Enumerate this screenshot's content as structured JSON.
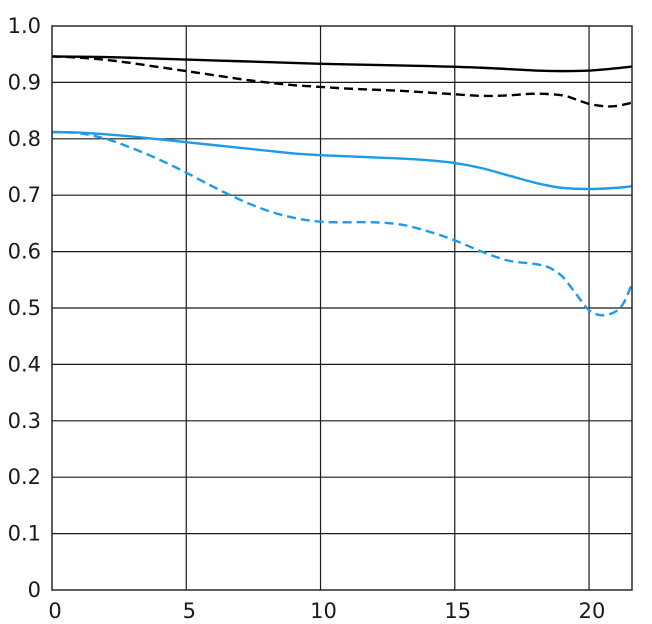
{
  "chart_data": {
    "type": "line",
    "title": "",
    "xlabel": "",
    "ylabel": "",
    "xlim": [
      0,
      21.6
    ],
    "ylim": [
      0,
      1.0
    ],
    "grid": true,
    "x_ticks": [
      0,
      5,
      10,
      15,
      20
    ],
    "x_tick_labels": [
      "0",
      "5",
      "10",
      "15",
      "20"
    ],
    "y_ticks": [
      0,
      0.1,
      0.2,
      0.3,
      0.4,
      0.5,
      0.6,
      0.7,
      0.8,
      0.9,
      1.0
    ],
    "y_tick_labels": [
      "0",
      "0.1",
      "0.2",
      "0.3",
      "0.4",
      "0.5",
      "0.6",
      "0.7",
      "0.8",
      "0.9",
      "1.0"
    ],
    "series": [
      {
        "color": "#000000",
        "dash": "solid",
        "x": [
          0,
          2,
          4,
          6,
          8,
          10,
          12,
          14,
          16,
          18,
          19,
          20,
          21,
          21.6
        ],
        "y": [
          0.946,
          0.945,
          0.942,
          0.939,
          0.936,
          0.933,
          0.931,
          0.929,
          0.926,
          0.921,
          0.92,
          0.921,
          0.925,
          0.928
        ]
      },
      {
        "color": "#000000",
        "dash": "dashed",
        "x": [
          0,
          1,
          2,
          3,
          4,
          5,
          6,
          7,
          8,
          9,
          10,
          11,
          12,
          13,
          14,
          15,
          16,
          17,
          18,
          19,
          19.5,
          20,
          20.5,
          21,
          21.6
        ],
        "y": [
          0.946,
          0.944,
          0.94,
          0.934,
          0.927,
          0.92,
          0.913,
          0.906,
          0.9,
          0.895,
          0.892,
          0.889,
          0.887,
          0.885,
          0.882,
          0.879,
          0.876,
          0.877,
          0.88,
          0.877,
          0.87,
          0.862,
          0.858,
          0.858,
          0.864
        ]
      },
      {
        "color": "#1e9be8",
        "dash": "solid",
        "x": [
          0,
          1,
          2,
          3,
          4,
          5,
          6,
          7,
          8,
          9,
          10,
          11,
          12,
          13,
          14,
          15,
          16,
          17,
          18,
          19,
          20,
          21,
          21.6
        ],
        "y": [
          0.812,
          0.811,
          0.808,
          0.804,
          0.799,
          0.794,
          0.789,
          0.784,
          0.779,
          0.774,
          0.771,
          0.769,
          0.767,
          0.765,
          0.762,
          0.757,
          0.748,
          0.735,
          0.722,
          0.713,
          0.711,
          0.713,
          0.716
        ]
      },
      {
        "color": "#1e9be8",
        "dash": "dashed",
        "x": [
          0,
          1,
          2,
          3,
          4,
          5,
          6,
          7,
          8,
          9,
          10,
          11,
          12,
          13,
          14,
          15,
          16,
          17,
          18,
          18.5,
          19,
          19.5,
          20,
          20.5,
          21,
          21.3,
          21.6
        ],
        "y": [
          0.812,
          0.81,
          0.8,
          0.783,
          0.763,
          0.74,
          0.715,
          0.692,
          0.673,
          0.66,
          0.653,
          0.652,
          0.652,
          0.648,
          0.636,
          0.62,
          0.6,
          0.584,
          0.578,
          0.572,
          0.556,
          0.526,
          0.496,
          0.487,
          0.494,
          0.51,
          0.543
        ]
      }
    ]
  }
}
